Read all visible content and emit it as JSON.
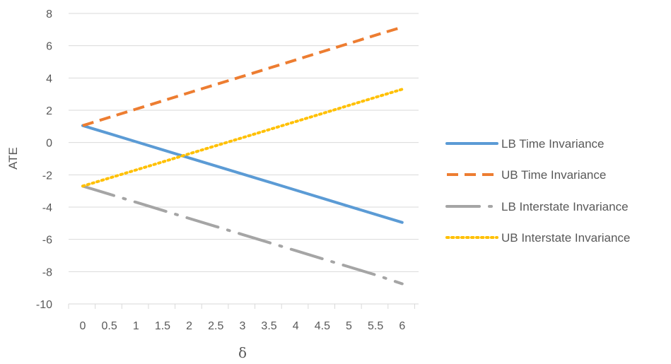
{
  "chart_data": {
    "type": "line",
    "title": "",
    "xlabel": "δ",
    "ylabel": "ATE",
    "x": [
      0,
      0.5,
      1,
      1.5,
      2,
      2.5,
      3,
      3.5,
      4,
      4.5,
      5,
      5.5,
      6
    ],
    "x_tick_labels": [
      "0",
      "0.5",
      "1",
      "1.5",
      "2",
      "2.5",
      "3",
      "3.5",
      "4",
      "4.5",
      "5",
      "5.5",
      "6"
    ],
    "ylim": [
      -10,
      8
    ],
    "y_ticks": [
      8,
      6,
      4,
      2,
      0,
      -2,
      -4,
      -6,
      -8,
      -10
    ],
    "grid": "horizontal",
    "legend_position": "right",
    "series": [
      {
        "name": "LB Time Invariance",
        "color": "#5B9BD5",
        "style": "solid",
        "values": [
          1.05,
          0.55,
          0.05,
          -0.45,
          -0.95,
          -1.45,
          -1.95,
          -2.45,
          -2.95,
          -3.45,
          -3.95,
          -4.45,
          -4.95
        ]
      },
      {
        "name": "UB Time Invariance",
        "color": "#ED7D31",
        "style": "dash",
        "values": [
          1.05,
          1.56,
          2.07,
          2.58,
          3.09,
          3.6,
          4.1,
          4.61,
          5.12,
          5.63,
          6.14,
          6.65,
          7.15
        ]
      },
      {
        "name": "LB Interstate Invariance",
        "color": "#A5A5A5",
        "style": "dashdot",
        "values": [
          -2.7,
          -3.2,
          -3.7,
          -4.2,
          -4.7,
          -5.2,
          -5.7,
          -6.2,
          -6.7,
          -7.2,
          -7.7,
          -8.2,
          -8.75
        ]
      },
      {
        "name": "UB Interstate Invariance",
        "color": "#FFC000",
        "style": "dot",
        "values": [
          -2.7,
          -2.2,
          -1.7,
          -1.2,
          -0.7,
          -0.2,
          0.3,
          0.8,
          1.3,
          1.8,
          2.3,
          2.8,
          3.3
        ]
      }
    ]
  }
}
